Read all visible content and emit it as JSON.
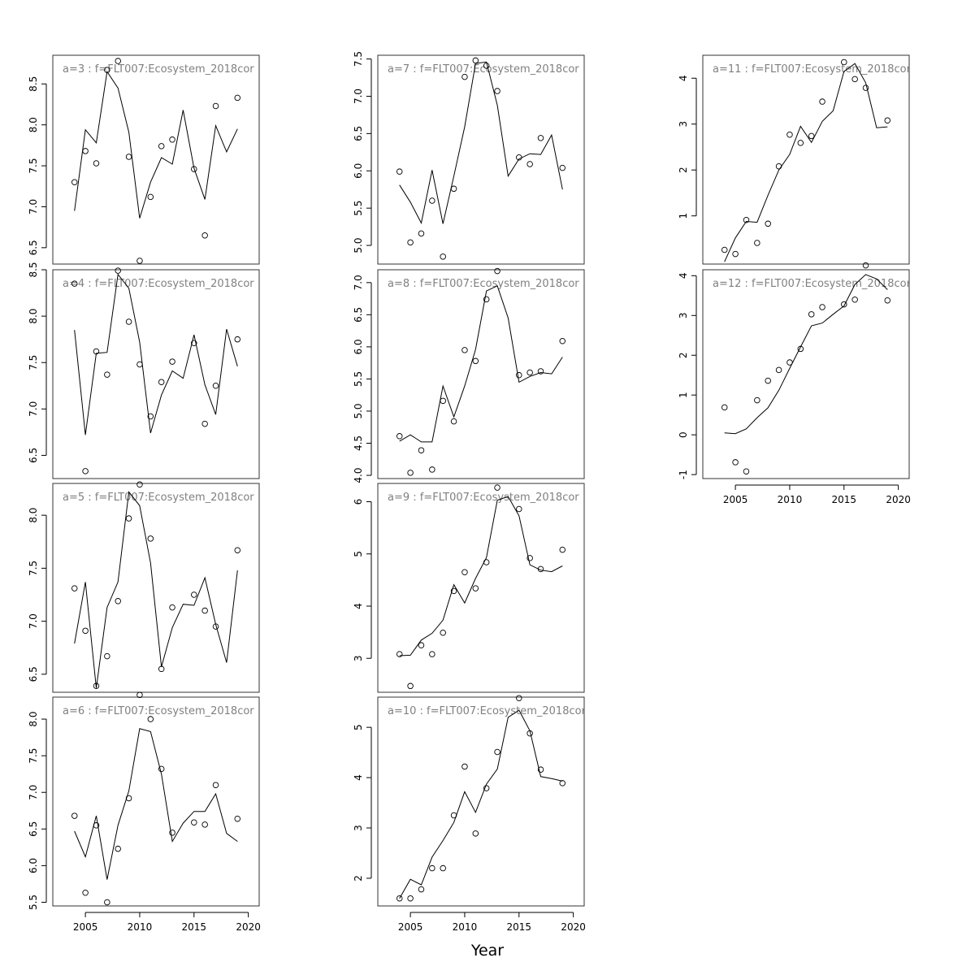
{
  "figure": {
    "xlabel": "Year"
  },
  "chart_data": [
    {
      "type": "scatter",
      "title": "a=3  :  f=FLT007:Ecosystem_2018cor",
      "xlim": [
        2002,
        2021
      ],
      "ylim": [
        6.3,
        8.85
      ],
      "yticks": [
        6.5,
        7.0,
        7.5,
        8.0,
        8.5
      ],
      "points": [
        [
          2004,
          7.3
        ],
        [
          2005,
          7.68
        ],
        [
          2006,
          7.53
        ],
        [
          2007,
          8.67
        ],
        [
          2008,
          8.78
        ],
        [
          2009,
          7.61
        ],
        [
          2010,
          6.34
        ],
        [
          2011,
          7.12
        ],
        [
          2012,
          7.74
        ],
        [
          2013,
          7.82
        ],
        [
          2015,
          7.46
        ],
        [
          2016,
          6.65
        ],
        [
          2017,
          8.23
        ],
        [
          2019,
          8.33
        ]
      ],
      "line": [
        [
          2004,
          6.95
        ],
        [
          2005,
          7.94
        ],
        [
          2006,
          7.78
        ],
        [
          2007,
          8.65
        ],
        [
          2008,
          8.45
        ],
        [
          2009,
          7.91
        ],
        [
          2010,
          6.86
        ],
        [
          2011,
          7.3
        ],
        [
          2012,
          7.6
        ],
        [
          2013,
          7.52
        ],
        [
          2014,
          8.18
        ],
        [
          2015,
          7.47
        ],
        [
          2016,
          7.09
        ],
        [
          2017,
          7.99
        ],
        [
          2018,
          7.67
        ],
        [
          2019,
          7.95
        ]
      ]
    },
    {
      "type": "scatter",
      "title": "a=4  :  f=FLT007:Ecosystem_2018cor",
      "xlim": [
        2002,
        2021
      ],
      "ylim": [
        6.25,
        8.5
      ],
      "yticks": [
        6.5,
        7.0,
        7.5,
        8.0,
        8.5
      ],
      "points": [
        [
          2004,
          8.35
        ],
        [
          2005,
          6.33
        ],
        [
          2006,
          7.62
        ],
        [
          2007,
          7.37
        ],
        [
          2008,
          8.49
        ],
        [
          2009,
          7.94
        ],
        [
          2010,
          7.48
        ],
        [
          2011,
          6.92
        ],
        [
          2012,
          7.29
        ],
        [
          2013,
          7.51
        ],
        [
          2015,
          7.71
        ],
        [
          2016,
          6.84
        ],
        [
          2017,
          7.25
        ],
        [
          2019,
          7.75
        ]
      ],
      "line": [
        [
          2004,
          7.85
        ],
        [
          2005,
          6.72
        ],
        [
          2006,
          7.6
        ],
        [
          2007,
          7.61
        ],
        [
          2008,
          8.45
        ],
        [
          2009,
          8.3
        ],
        [
          2010,
          7.72
        ],
        [
          2011,
          6.74
        ],
        [
          2012,
          7.15
        ],
        [
          2013,
          7.41
        ],
        [
          2014,
          7.33
        ],
        [
          2015,
          7.8
        ],
        [
          2016,
          7.26
        ],
        [
          2017,
          6.94
        ],
        [
          2018,
          7.86
        ],
        [
          2019,
          7.46
        ]
      ]
    },
    {
      "type": "scatter",
      "title": "a=5  :  f=FLT007:Ecosystem_2018cor",
      "xlim": [
        2002,
        2021
      ],
      "ylim": [
        6.33,
        8.3
      ],
      "yticks": [
        6.5,
        7.0,
        7.5,
        8.0
      ],
      "points": [
        [
          2004,
          7.31
        ],
        [
          2005,
          6.91
        ],
        [
          2006,
          6.39
        ],
        [
          2007,
          6.67
        ],
        [
          2008,
          7.19
        ],
        [
          2009,
          7.97
        ],
        [
          2010,
          8.29
        ],
        [
          2011,
          7.78
        ],
        [
          2012,
          6.55
        ],
        [
          2013,
          7.13
        ],
        [
          2015,
          7.25
        ],
        [
          2016,
          7.1
        ],
        [
          2017,
          6.95
        ],
        [
          2019,
          7.67
        ]
      ],
      "line": [
        [
          2004,
          6.79
        ],
        [
          2005,
          7.37
        ],
        [
          2006,
          6.37
        ],
        [
          2007,
          7.13
        ],
        [
          2008,
          7.37
        ],
        [
          2009,
          8.22
        ],
        [
          2010,
          8.09
        ],
        [
          2011,
          7.55
        ],
        [
          2012,
          6.57
        ],
        [
          2013,
          6.94
        ],
        [
          2014,
          7.16
        ],
        [
          2015,
          7.15
        ],
        [
          2016,
          7.41
        ],
        [
          2017,
          6.97
        ],
        [
          2018,
          6.61
        ],
        [
          2019,
          7.48
        ]
      ]
    },
    {
      "type": "scatter",
      "title": "a=6  :  f=FLT007:Ecosystem_2018cor",
      "xlim": [
        2002,
        2021
      ],
      "ylim": [
        5.45,
        8.3
      ],
      "yticks": [
        5.5,
        6.0,
        6.5,
        7.0,
        7.5,
        8.0
      ],
      "points": [
        [
          2004,
          6.68
        ],
        [
          2005,
          5.63
        ],
        [
          2006,
          6.55
        ],
        [
          2007,
          5.5
        ],
        [
          2008,
          6.23
        ],
        [
          2009,
          6.92
        ],
        [
          2010,
          8.33
        ],
        [
          2011,
          8.0
        ],
        [
          2012,
          7.32
        ],
        [
          2013,
          6.45
        ],
        [
          2015,
          6.59
        ],
        [
          2016,
          6.56
        ],
        [
          2017,
          7.1
        ],
        [
          2019,
          6.64
        ]
      ],
      "line": [
        [
          2004,
          6.47
        ],
        [
          2005,
          6.12
        ],
        [
          2006,
          6.68
        ],
        [
          2007,
          5.81
        ],
        [
          2008,
          6.55
        ],
        [
          2009,
          7.02
        ],
        [
          2010,
          7.87
        ],
        [
          2011,
          7.83
        ],
        [
          2012,
          7.25
        ],
        [
          2013,
          6.33
        ],
        [
          2014,
          6.58
        ],
        [
          2015,
          6.74
        ],
        [
          2016,
          6.74
        ],
        [
          2017,
          6.98
        ],
        [
          2018,
          6.44
        ],
        [
          2019,
          6.33
        ]
      ]
    },
    {
      "type": "scatter",
      "title": "a=7  :  f=FLT007:Ecosystem_2018cor",
      "xlim": [
        2002,
        2021
      ],
      "ylim": [
        4.75,
        7.55
      ],
      "yticks": [
        5.0,
        5.5,
        6.0,
        6.5,
        7.0,
        7.5
      ],
      "points": [
        [
          2004,
          5.99
        ],
        [
          2005,
          5.04
        ],
        [
          2006,
          5.16
        ],
        [
          2007,
          5.6
        ],
        [
          2008,
          4.85
        ],
        [
          2009,
          5.76
        ],
        [
          2010,
          7.26
        ],
        [
          2011,
          7.48
        ],
        [
          2012,
          7.41
        ],
        [
          2013,
          7.07
        ],
        [
          2015,
          6.18
        ],
        [
          2016,
          6.09
        ],
        [
          2017,
          6.44
        ],
        [
          2019,
          6.04
        ]
      ],
      "line": [
        [
          2004,
          5.81
        ],
        [
          2005,
          5.58
        ],
        [
          2006,
          5.3
        ],
        [
          2007,
          6.01
        ],
        [
          2008,
          5.29
        ],
        [
          2009,
          5.93
        ],
        [
          2010,
          6.59
        ],
        [
          2011,
          7.44
        ],
        [
          2012,
          7.46
        ],
        [
          2013,
          6.88
        ],
        [
          2014,
          5.93
        ],
        [
          2015,
          6.16
        ],
        [
          2016,
          6.23
        ],
        [
          2017,
          6.22
        ],
        [
          2018,
          6.48
        ],
        [
          2019,
          5.75
        ]
      ]
    },
    {
      "type": "scatter",
      "title": "a=8  :  f=FLT007:Ecosystem_2018cor",
      "xlim": [
        2002,
        2021
      ],
      "ylim": [
        3.95,
        7.2
      ],
      "yticks": [
        4.0,
        4.5,
        5.0,
        5.5,
        6.0,
        6.5,
        7.0
      ],
      "points": [
        [
          2004,
          4.61
        ],
        [
          2005,
          4.04
        ],
        [
          2006,
          4.39
        ],
        [
          2007,
          4.09
        ],
        [
          2008,
          5.16
        ],
        [
          2009,
          4.84
        ],
        [
          2010,
          5.95
        ],
        [
          2011,
          5.78
        ],
        [
          2012,
          6.74
        ],
        [
          2013,
          7.18
        ],
        [
          2015,
          5.56
        ],
        [
          2016,
          5.6
        ],
        [
          2017,
          5.62
        ],
        [
          2019,
          6.09
        ]
      ],
      "line": [
        [
          2004,
          4.53
        ],
        [
          2005,
          4.63
        ],
        [
          2006,
          4.52
        ],
        [
          2007,
          4.52
        ],
        [
          2008,
          5.39
        ],
        [
          2009,
          4.91
        ],
        [
          2010,
          5.39
        ],
        [
          2011,
          5.96
        ],
        [
          2012,
          6.87
        ],
        [
          2013,
          6.95
        ],
        [
          2014,
          6.45
        ],
        [
          2015,
          5.45
        ],
        [
          2016,
          5.54
        ],
        [
          2017,
          5.6
        ],
        [
          2018,
          5.58
        ],
        [
          2019,
          5.84
        ]
      ]
    },
    {
      "type": "scatter",
      "title": "a=9  :  f=FLT007:Ecosystem_2018cor",
      "xlim": [
        2002,
        2021
      ],
      "ylim": [
        2.35,
        6.35
      ],
      "yticks": [
        3,
        4,
        5,
        6
      ],
      "points": [
        [
          2004,
          3.08
        ],
        [
          2005,
          2.47
        ],
        [
          2006,
          3.25
        ],
        [
          2007,
          3.08
        ],
        [
          2008,
          3.49
        ],
        [
          2009,
          4.29
        ],
        [
          2010,
          4.65
        ],
        [
          2011,
          4.34
        ],
        [
          2012,
          4.84
        ],
        [
          2013,
          6.27
        ],
        [
          2015,
          5.86
        ],
        [
          2016,
          4.92
        ],
        [
          2017,
          4.71
        ],
        [
          2019,
          5.08
        ]
      ],
      "line": [
        [
          2004,
          3.05
        ],
        [
          2005,
          3.06
        ],
        [
          2006,
          3.35
        ],
        [
          2007,
          3.48
        ],
        [
          2008,
          3.73
        ],
        [
          2009,
          4.41
        ],
        [
          2010,
          4.06
        ],
        [
          2011,
          4.53
        ],
        [
          2012,
          4.93
        ],
        [
          2013,
          6.03
        ],
        [
          2014,
          6.1
        ],
        [
          2015,
          5.73
        ],
        [
          2016,
          4.79
        ],
        [
          2017,
          4.69
        ],
        [
          2018,
          4.66
        ],
        [
          2019,
          4.77
        ]
      ]
    },
    {
      "type": "scatter",
      "title": "a=10  :  f=FLT007:Ecosystem_2018cor",
      "xlim": [
        2002,
        2021
      ],
      "ylim": [
        1.45,
        5.6
      ],
      "yticks": [
        2,
        3,
        4,
        5
      ],
      "points": [
        [
          2004,
          1.6
        ],
        [
          2005,
          1.6
        ],
        [
          2006,
          1.78
        ],
        [
          2007,
          2.2
        ],
        [
          2008,
          2.2
        ],
        [
          2009,
          3.25
        ],
        [
          2010,
          4.22
        ],
        [
          2011,
          2.89
        ],
        [
          2012,
          3.79
        ],
        [
          2013,
          4.51
        ],
        [
          2015,
          5.58
        ],
        [
          2016,
          4.88
        ],
        [
          2017,
          4.16
        ],
        [
          2019,
          3.89
        ]
      ],
      "line": [
        [
          2004,
          1.6
        ],
        [
          2005,
          1.98
        ],
        [
          2006,
          1.87
        ],
        [
          2007,
          2.42
        ],
        [
          2008,
          2.75
        ],
        [
          2009,
          3.11
        ],
        [
          2010,
          3.72
        ],
        [
          2011,
          3.31
        ],
        [
          2012,
          3.87
        ],
        [
          2013,
          4.17
        ],
        [
          2014,
          5.2
        ],
        [
          2015,
          5.34
        ],
        [
          2016,
          4.93
        ],
        [
          2017,
          4.02
        ],
        [
          2018,
          3.98
        ],
        [
          2019,
          3.93
        ]
      ]
    },
    {
      "type": "scatter",
      "title": "a=11  :  f=FLT007:Ecosystem_2018cor",
      "xlim": [
        2002,
        2021
      ],
      "ylim": [
        -0.05,
        4.5
      ],
      "yticks": [
        1,
        2,
        3,
        4
      ],
      "points": [
        [
          2004,
          0.26
        ],
        [
          2005,
          0.17
        ],
        [
          2006,
          0.91
        ],
        [
          2007,
          0.41
        ],
        [
          2008,
          0.83
        ],
        [
          2009,
          2.08
        ],
        [
          2010,
          2.77
        ],
        [
          2011,
          2.59
        ],
        [
          2012,
          2.74
        ],
        [
          2013,
          3.49
        ],
        [
          2015,
          4.35
        ],
        [
          2016,
          3.98
        ],
        [
          2017,
          3.79
        ],
        [
          2019,
          3.08
        ]
      ],
      "line": [
        [
          2004,
          0.0
        ],
        [
          2005,
          0.52
        ],
        [
          2006,
          0.88
        ],
        [
          2007,
          0.86
        ],
        [
          2008,
          1.45
        ],
        [
          2009,
          2.0
        ],
        [
          2010,
          2.34
        ],
        [
          2011,
          2.95
        ],
        [
          2012,
          2.6
        ],
        [
          2013,
          3.06
        ],
        [
          2014,
          3.29
        ],
        [
          2015,
          4.15
        ],
        [
          2016,
          4.32
        ],
        [
          2017,
          3.9
        ],
        [
          2018,
          2.92
        ],
        [
          2019,
          2.94
        ]
      ]
    },
    {
      "type": "scatter",
      "title": "a=12  :  f=FLT007:Ecosystem_2018cor",
      "xlim": [
        2002,
        2021
      ],
      "ylim": [
        -1.1,
        4.15
      ],
      "yticks": [
        -1,
        0,
        1,
        2,
        3,
        4
      ],
      "points": [
        [
          2004,
          0.69
        ],
        [
          2005,
          -0.69
        ],
        [
          2006,
          -0.92
        ],
        [
          2007,
          0.87
        ],
        [
          2008,
          1.36
        ],
        [
          2009,
          1.63
        ],
        [
          2010,
          1.82
        ],
        [
          2011,
          2.16
        ],
        [
          2012,
          3.03
        ],
        [
          2013,
          3.21
        ],
        [
          2015,
          3.28
        ],
        [
          2016,
          3.4
        ],
        [
          2017,
          4.26
        ],
        [
          2019,
          3.38
        ]
      ],
      "line": [
        [
          2004,
          0.05
        ],
        [
          2005,
          0.03
        ],
        [
          2006,
          0.15
        ],
        [
          2007,
          0.43
        ],
        [
          2008,
          0.68
        ],
        [
          2009,
          1.12
        ],
        [
          2010,
          1.67
        ],
        [
          2011,
          2.21
        ],
        [
          2012,
          2.74
        ],
        [
          2013,
          2.81
        ],
        [
          2014,
          3.03
        ],
        [
          2015,
          3.24
        ],
        [
          2016,
          3.78
        ],
        [
          2017,
          4.03
        ],
        [
          2018,
          3.92
        ],
        [
          2019,
          3.65
        ]
      ]
    }
  ]
}
